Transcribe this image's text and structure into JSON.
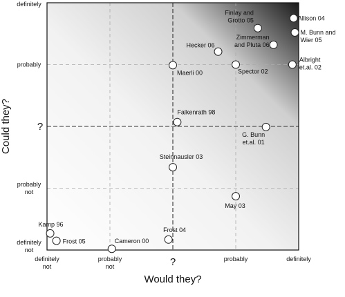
{
  "chart_data": {
    "type": "scatter",
    "title": "",
    "xlabel": "Would they?",
    "ylabel": "Could they?",
    "xlim": [
      0,
      4
    ],
    "ylim": [
      0,
      4
    ],
    "grid": true,
    "x_ticks": [
      {
        "value": 0,
        "lines": [
          "definitely",
          "not"
        ]
      },
      {
        "value": 1,
        "lines": [
          "probably",
          "not"
        ]
      },
      {
        "value": 2,
        "lines": [
          "?"
        ]
      },
      {
        "value": 3,
        "lines": [
          "probably"
        ]
      },
      {
        "value": 4,
        "lines": [
          "definitely"
        ]
      }
    ],
    "y_ticks": [
      {
        "value": 0,
        "lines": [
          "definitely",
          "not"
        ]
      },
      {
        "value": 1,
        "lines": [
          "probably",
          "not"
        ]
      },
      {
        "value": 2,
        "lines": [
          "?"
        ]
      },
      {
        "value": 3,
        "lines": [
          "probably"
        ]
      },
      {
        "value": 4,
        "lines": [
          "definitely"
        ]
      }
    ],
    "points": [
      {
        "x": 3.92,
        "y": 3.75,
        "lines": [
          "Allison 04"
        ]
      },
      {
        "x": 3.94,
        "y": 3.52,
        "lines": [
          "M. Bunn and",
          "Wier 05"
        ]
      },
      {
        "x": 3.35,
        "y": 3.59,
        "lines": [
          "Finlay and",
          "Grotto 05"
        ]
      },
      {
        "x": 3.6,
        "y": 3.32,
        "lines": [
          "Zimmerman",
          "and Pluta 06"
        ]
      },
      {
        "x": 2.72,
        "y": 3.21,
        "lines": [
          "Hecker 06"
        ]
      },
      {
        "x": 3.0,
        "y": 3.0,
        "lines": [
          "Spector 02"
        ]
      },
      {
        "x": 3.9,
        "y": 3.0,
        "lines": [
          "Albright",
          "et.al. 02"
        ]
      },
      {
        "x": 2.0,
        "y": 2.99,
        "lines": [
          "Maerli 00"
        ]
      },
      {
        "x": 2.07,
        "y": 2.07,
        "lines": [
          "Falkenrath 98"
        ]
      },
      {
        "x": 3.48,
        "y": 1.99,
        "lines": [
          "G. Bunn",
          "et.al. 01"
        ]
      },
      {
        "x": 2.0,
        "y": 1.34,
        "lines": [
          "Steinnausler 03"
        ]
      },
      {
        "x": 3.0,
        "y": 0.87,
        "lines": [
          "May 03"
        ]
      },
      {
        "x": 0.05,
        "y": 0.27,
        "lines": [
          "Kamp 96"
        ]
      },
      {
        "x": 0.15,
        "y": 0.15,
        "lines": [
          "Frost 05"
        ]
      },
      {
        "x": 1.03,
        "y": 0.02,
        "lines": [
          "Cameron 00"
        ]
      },
      {
        "x": 1.93,
        "y": 0.17,
        "lines": [
          "Frost 04"
        ]
      }
    ]
  }
}
